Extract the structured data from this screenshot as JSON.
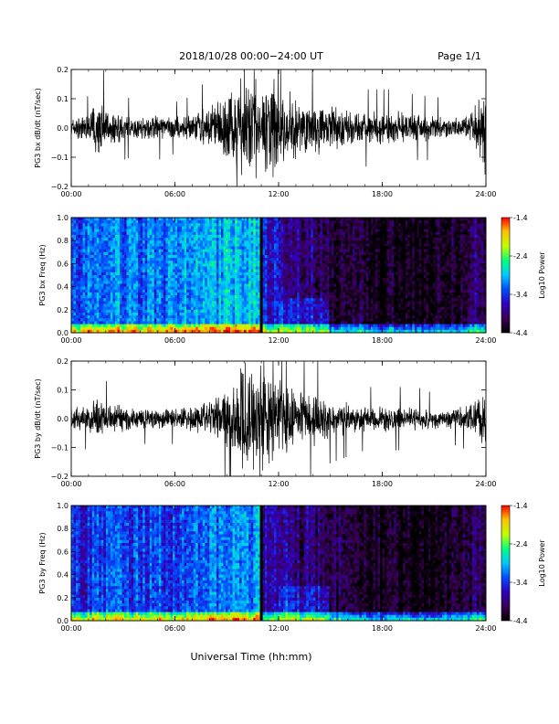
{
  "header": {
    "title": "2018/10/28  00:00−24:00 UT",
    "page": "Page 1/1"
  },
  "footer": {
    "xlabel": "Universal Time (hh:mm)"
  },
  "colors": {
    "trace": "#000000",
    "colormap": [
      "#000000",
      "#3a0050",
      "#3000c0",
      "#0050ff",
      "#00c8ff",
      "#00ff80",
      "#c0ff00",
      "#ffc000",
      "#ff0000"
    ]
  },
  "chart_data": [
    {
      "type": "line",
      "ylabel": "PG3 bx dB/dt (nT/sec)",
      "xlim": [
        0,
        24
      ],
      "x_unit": "hours UT",
      "xticks": [
        "00:00",
        "06:00",
        "12:00",
        "18:00",
        "24:00"
      ],
      "ylim": [
        -0.2,
        0.2
      ],
      "yticks": [
        "0.2",
        "0.1",
        "0.0",
        "−0.1",
        "−0.2"
      ],
      "envelope_hours": [
        0,
        1,
        1.5,
        2,
        3,
        4,
        5,
        6,
        7,
        8,
        9,
        10,
        10.5,
        11,
        11.5,
        12,
        13,
        14,
        15,
        16,
        17,
        18,
        19,
        20,
        21,
        22,
        23,
        23.5,
        24
      ],
      "envelope_amplitude": [
        0.04,
        0.05,
        0.12,
        0.08,
        0.05,
        0.04,
        0.05,
        0.04,
        0.05,
        0.08,
        0.14,
        0.2,
        0.2,
        0.2,
        0.2,
        0.17,
        0.12,
        0.1,
        0.08,
        0.07,
        0.06,
        0.06,
        0.06,
        0.05,
        0.05,
        0.04,
        0.05,
        0.1,
        0.2
      ]
    },
    {
      "type": "heatmap",
      "ylabel": "PG3 bx Freq (Hz)",
      "xlim": [
        0,
        24
      ],
      "xticks": [
        "00:00",
        "06:00",
        "12:00",
        "18:00",
        "24:00"
      ],
      "ylim": [
        0,
        1
      ],
      "yticks": [
        "1.0",
        "0.8",
        "0.6",
        "0.4",
        "0.2",
        "0.0"
      ],
      "colorbar_label": "Log10 Power",
      "colorbar_range": [
        -4.4,
        -1.4
      ],
      "colorbar_ticks": [
        "-1.4",
        "-2.4",
        "-3.4",
        "-4.4"
      ],
      "data_gap_hour": 11.0,
      "mean_log_power_by_hour": [
        -3.3,
        -3.2,
        -3.1,
        -3.2,
        -3.2,
        -3.2,
        -3.1,
        -3.1,
        -3.0,
        -2.9,
        -2.9,
        -3.6,
        -3.8,
        -3.9,
        -4.0,
        -4.1,
        -4.2,
        -4.2,
        -4.3,
        -4.3,
        -4.3,
        -4.2,
        -4.2,
        -4.0
      ]
    },
    {
      "type": "line",
      "ylabel": "PG3 by dB/dt (nT/sec)",
      "xlim": [
        0,
        24
      ],
      "x_unit": "hours UT",
      "xticks": [
        "00:00",
        "06:00",
        "12:00",
        "18:00",
        "24:00"
      ],
      "ylim": [
        -0.2,
        0.2
      ],
      "yticks": [
        "0.2",
        "0.1",
        "0.0",
        "−0.1",
        "−0.2"
      ],
      "envelope_hours": [
        0,
        1,
        1.5,
        2,
        3,
        4,
        5,
        6,
        7,
        8,
        9,
        10,
        10.5,
        11,
        11.5,
        12,
        13,
        14,
        15,
        16,
        17,
        18,
        19,
        20,
        21,
        22,
        23,
        23.5,
        24
      ],
      "envelope_amplitude": [
        0.04,
        0.05,
        0.1,
        0.06,
        0.05,
        0.04,
        0.04,
        0.04,
        0.05,
        0.06,
        0.12,
        0.2,
        0.2,
        0.2,
        0.2,
        0.16,
        0.12,
        0.1,
        0.07,
        0.06,
        0.05,
        0.05,
        0.05,
        0.05,
        0.04,
        0.04,
        0.05,
        0.08,
        0.12
      ]
    },
    {
      "type": "heatmap",
      "ylabel": "PG3 by Freq (Hz)",
      "xlim": [
        0,
        24
      ],
      "xticks": [
        "00:00",
        "06:00",
        "12:00",
        "18:00",
        "24:00"
      ],
      "ylim": [
        0,
        1
      ],
      "yticks": [
        "1.0",
        "0.8",
        "0.6",
        "0.4",
        "0.2",
        "0.0"
      ],
      "colorbar_label": "Log10 Power",
      "colorbar_range": [
        -4.4,
        -1.4
      ],
      "colorbar_ticks": [
        "-1.4",
        "-2.4",
        "-3.4",
        "-4.4"
      ],
      "data_gap_hour": 11.0,
      "mean_log_power_by_hour": [
        -3.5,
        -3.4,
        -3.3,
        -3.4,
        -3.4,
        -3.4,
        -3.3,
        -3.3,
        -3.2,
        -3.1,
        -3.1,
        -3.7,
        -3.8,
        -3.9,
        -4.0,
        -4.1,
        -4.2,
        -4.3,
        -4.3,
        -4.3,
        -4.3,
        -4.3,
        -4.2,
        -4.0
      ]
    }
  ]
}
